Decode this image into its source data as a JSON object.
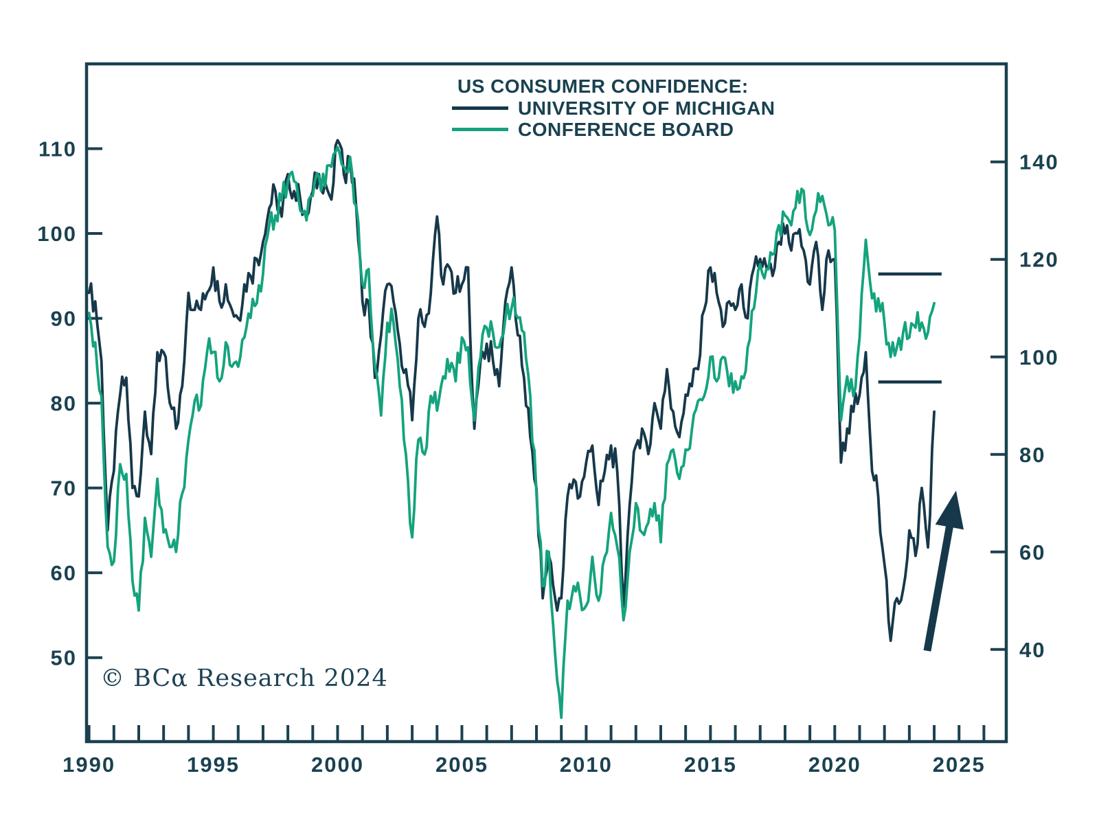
{
  "page": {
    "background": "#ffffff"
  },
  "colors": {
    "axis": "#1a4150",
    "michigan_line": "#16384a",
    "conference_line": "#14a37d"
  },
  "legend": {
    "title": "US CONSUMER CONFIDENCE:",
    "items": [
      {
        "label": "UNIVERSITY OF MICHIGAN",
        "color": "#16384a"
      },
      {
        "label": "CONFERENCE BOARD",
        "color": "#14a37d"
      }
    ]
  },
  "watermark": "© BCα Research 2024",
  "chart_data": {
    "type": "line",
    "title": "US CONSUMER CONFIDENCE:",
    "grid": false,
    "legend_position": "top-center",
    "x_axis": {
      "range": [
        1989.9,
        2026.9
      ],
      "minor_tick_years_from": 1990,
      "minor_tick_years_to": 2026,
      "labels": [
        1990,
        1995,
        2000,
        2005,
        2010,
        2015,
        2020,
        2025
      ]
    },
    "left_axis": {
      "series": "University of Michigan",
      "range": [
        40.1,
        120.0
      ],
      "ticks": [
        50,
        60,
        70,
        80,
        90,
        100,
        110
      ]
    },
    "right_axis": {
      "series": "Conference Board",
      "range": [
        21.1,
        160.1
      ],
      "ticks": [
        40,
        60,
        80,
        100,
        120,
        140
      ]
    },
    "series": [
      {
        "name": "University of Michigan",
        "axis": "left",
        "color": "#16384a",
        "x_start": 1990.0,
        "x_step": 0.25,
        "values": [
          93,
          92,
          85,
          65,
          72,
          81,
          83,
          70,
          69,
          79,
          74,
          86,
          86,
          80,
          77,
          82,
          93,
          91,
          91,
          93,
          96,
          92,
          94,
          91,
          90,
          94,
          95,
          97,
          99,
          103,
          105,
          102,
          107,
          105,
          104,
          102,
          105,
          107,
          106,
          104,
          111,
          107,
          109,
          103,
          92,
          92,
          83,
          88,
          94,
          92,
          87,
          84,
          78,
          90,
          89,
          93,
          102,
          94,
          96,
          93,
          94,
          96,
          77,
          85,
          87,
          85,
          82,
          92,
          96,
          88,
          83,
          76,
          70,
          57,
          62,
          57,
          57,
          69,
          71,
          69,
          73,
          75,
          68,
          72,
          75,
          72,
          56,
          68,
          75,
          77,
          74,
          80,
          77,
          84,
          79,
          76,
          81,
          82,
          84,
          91,
          96,
          93,
          89,
          92,
          91,
          94,
          90,
          96,
          97,
          96,
          95,
          99,
          100,
          98,
          100,
          98,
          94,
          99,
          91,
          98,
          97,
          73,
          77,
          79,
          81,
          86,
          72,
          69,
          61,
          52,
          57,
          58,
          65,
          62,
          70,
          63,
          79
        ]
      },
      {
        "name": "Conference Board",
        "axis": "right",
        "color": "#14a37d",
        "x_start": 1990.0,
        "x_step": 0.25,
        "values": [
          109,
          103,
          92,
          61,
          58,
          78,
          76,
          54,
          48,
          67,
          59,
          75,
          64,
          61,
          60,
          72,
          83,
          91,
          90,
          101,
          101,
          95,
          103,
          98,
          98,
          104,
          108,
          111,
          117,
          127,
          129,
          132,
          136,
          136,
          130,
          128,
          133,
          137,
          135,
          139,
          143,
          139,
          141,
          131,
          115,
          118,
          98,
          88,
          107,
          107,
          94,
          80,
          63,
          83,
          80,
          92,
          89,
          96,
          97,
          95,
          104,
          102,
          87,
          100,
          106,
          105,
          102,
          108,
          110,
          108,
          105,
          92,
          72,
          53,
          60,
          39,
          26,
          50,
          53,
          51,
          49,
          59,
          50,
          59,
          68,
          61,
          46,
          60,
          70,
          64,
          66,
          70,
          62,
          78,
          81,
          75,
          81,
          85,
          91,
          92,
          100,
          95,
          100,
          94,
          95,
          96,
          102,
          110,
          119,
          118,
          121,
          127,
          129,
          127,
          134,
          134,
          125,
          130,
          133,
          127,
          126,
          87,
          96,
          92,
          104,
          124,
          112,
          112,
          107,
          100,
          102,
          105,
          104,
          106,
          107,
          105,
          111
        ]
      }
    ],
    "annotations": {
      "reference_lines": [
        {
          "axis": "right",
          "value": 117,
          "x_from": 2021.75,
          "x_to": 2024.3
        },
        {
          "axis": "left",
          "value": 82.5,
          "x_from": 2021.75,
          "x_to": 2024.3
        }
      ],
      "arrow": {
        "axis": "left",
        "x_from": 2023.72,
        "value_from": 50.8,
        "x_to": 2024.88,
        "value_to": 69.7
      }
    }
  }
}
